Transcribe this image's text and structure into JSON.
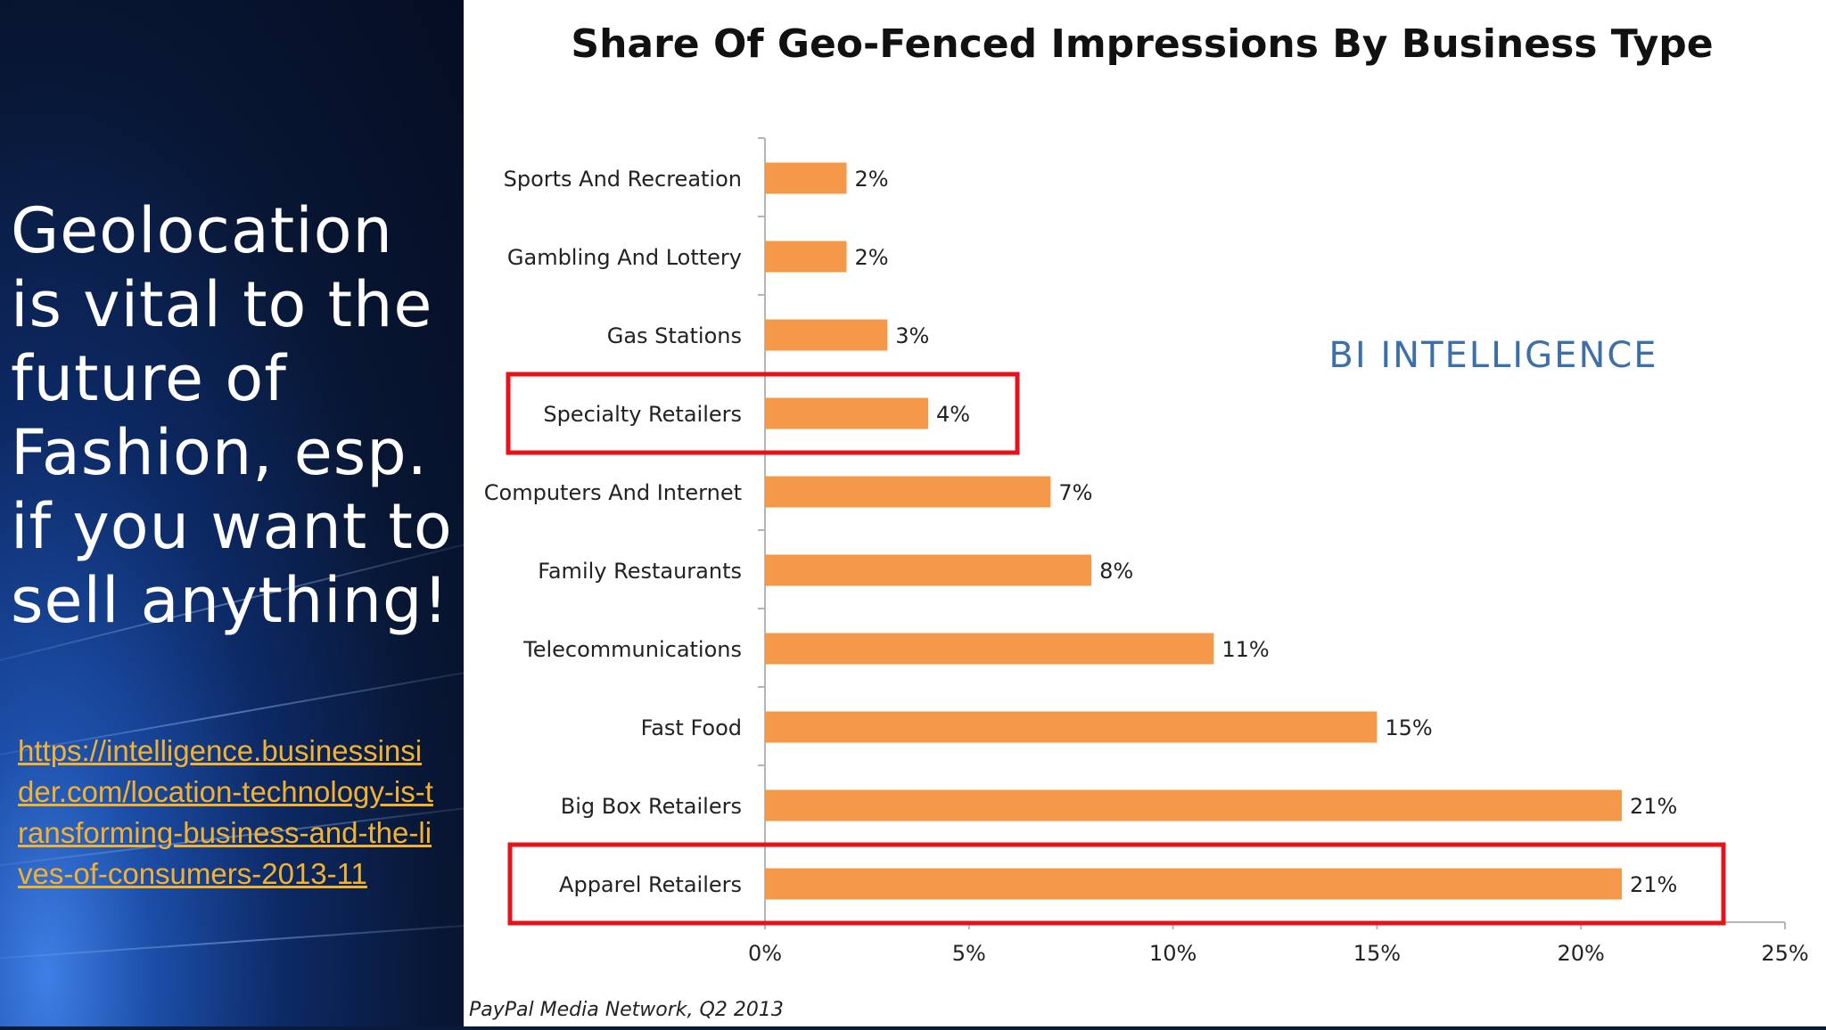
{
  "slide": {
    "headline": "Geolocation is vital to the future of Fashion, esp. if you want to sell anything!",
    "link": "https://intelligence.businessinsider.com/location-technology-is-transforming-business-and-the-lives-of-consumers-2013-11",
    "link_color": "#f2b230"
  },
  "watermark": "BI INTELLIGENCE",
  "source": "PayPal Media Network, Q2 2013",
  "highlighted_categories": [
    "Specialty Retailers",
    "Apparel Retailers"
  ],
  "highlight_color": "#e8121b",
  "chart_data": {
    "type": "bar",
    "orientation": "horizontal",
    "title": "Share Of Geo-Fenced Impressions By Business Type",
    "categories": [
      "Sports And Recreation",
      "Gambling And Lottery",
      "Gas Stations",
      "Specialty Retailers",
      "Computers And Internet",
      "Family Restaurants",
      "Telecommunications",
      "Fast Food",
      "Big Box Retailers",
      "Apparel Retailers"
    ],
    "values": [
      2,
      2,
      3,
      4,
      7,
      8,
      11,
      15,
      21,
      21
    ],
    "value_labels": [
      "2%",
      "2%",
      "3%",
      "4%",
      "7%",
      "8%",
      "11%",
      "15%",
      "21%",
      "21%"
    ],
    "xlim": [
      0,
      25
    ],
    "xticks": [
      0,
      5,
      10,
      15,
      20,
      25
    ],
    "xtick_labels": [
      "0%",
      "5%",
      "10%",
      "15%",
      "20%",
      "25%"
    ],
    "bar_color": "#f4994a",
    "grid": false,
    "legend": "none"
  }
}
